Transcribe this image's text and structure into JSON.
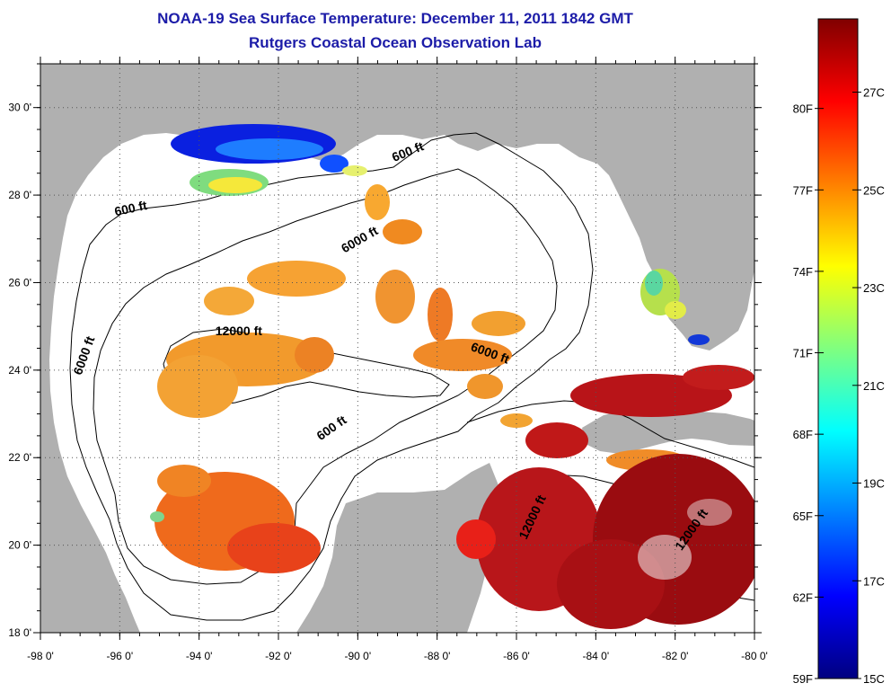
{
  "header": {
    "title": "NOAA-19 Sea Surface Temperature:  December 11, 2011 1842 GMT",
    "subtitle": "Rutgers Coastal Ocean Observation Lab"
  },
  "map": {
    "lon_range": [
      -98,
      -80
    ],
    "lat_range": [
      18,
      31
    ],
    "lon_ticks": [
      "-98 0'",
      "-96 0'",
      "-94 0'",
      "-92 0'",
      "-90 0'",
      "-88 0'",
      "-86 0'",
      "-84 0'",
      "-82 0'",
      "-80 0'"
    ],
    "lat_ticks": [
      "18 0'",
      "20 0'",
      "22 0'",
      "24 0'",
      "26 0'",
      "28 0'",
      "30 0'"
    ],
    "grid": "dotted",
    "land_color": "#b0b0b0",
    "water_no_data_color": "#ffffff",
    "contour_labels": [
      {
        "text": "600 ft",
        "lon": -95.7,
        "lat": 27.6
      },
      {
        "text": "600 ft",
        "lon": -88.7,
        "lat": 28.9
      },
      {
        "text": "6000 ft",
        "lon": -89.9,
        "lat": 26.9
      },
      {
        "text": "12000 ft",
        "lon": -93.0,
        "lat": 24.8
      },
      {
        "text": "6000 ft",
        "lon": -86.7,
        "lat": 24.3
      },
      {
        "text": "6000 ft",
        "lon": -96.8,
        "lat": 24.3
      },
      {
        "text": "600 ft",
        "lon": -90.6,
        "lat": 22.6
      },
      {
        "text": "12000 ft",
        "lon": -85.5,
        "lat": 20.6
      },
      {
        "text": "12000 ft",
        "lon": -81.5,
        "lat": 20.3
      }
    ]
  },
  "colorbar": {
    "fahrenheit_labels": [
      "80F",
      "77F",
      "74F",
      "71F",
      "68F",
      "65F",
      "62F",
      "59F"
    ],
    "celsius_labels": [
      "27C",
      "25C",
      "23C",
      "21C",
      "19C",
      "17C",
      "15C"
    ],
    "range_c": [
      15,
      28.5
    ],
    "colors": [
      "#000080",
      "#0000ff",
      "#00ffff",
      "#ffff00",
      "#ff7f00",
      "#ff0000",
      "#800000"
    ]
  }
}
